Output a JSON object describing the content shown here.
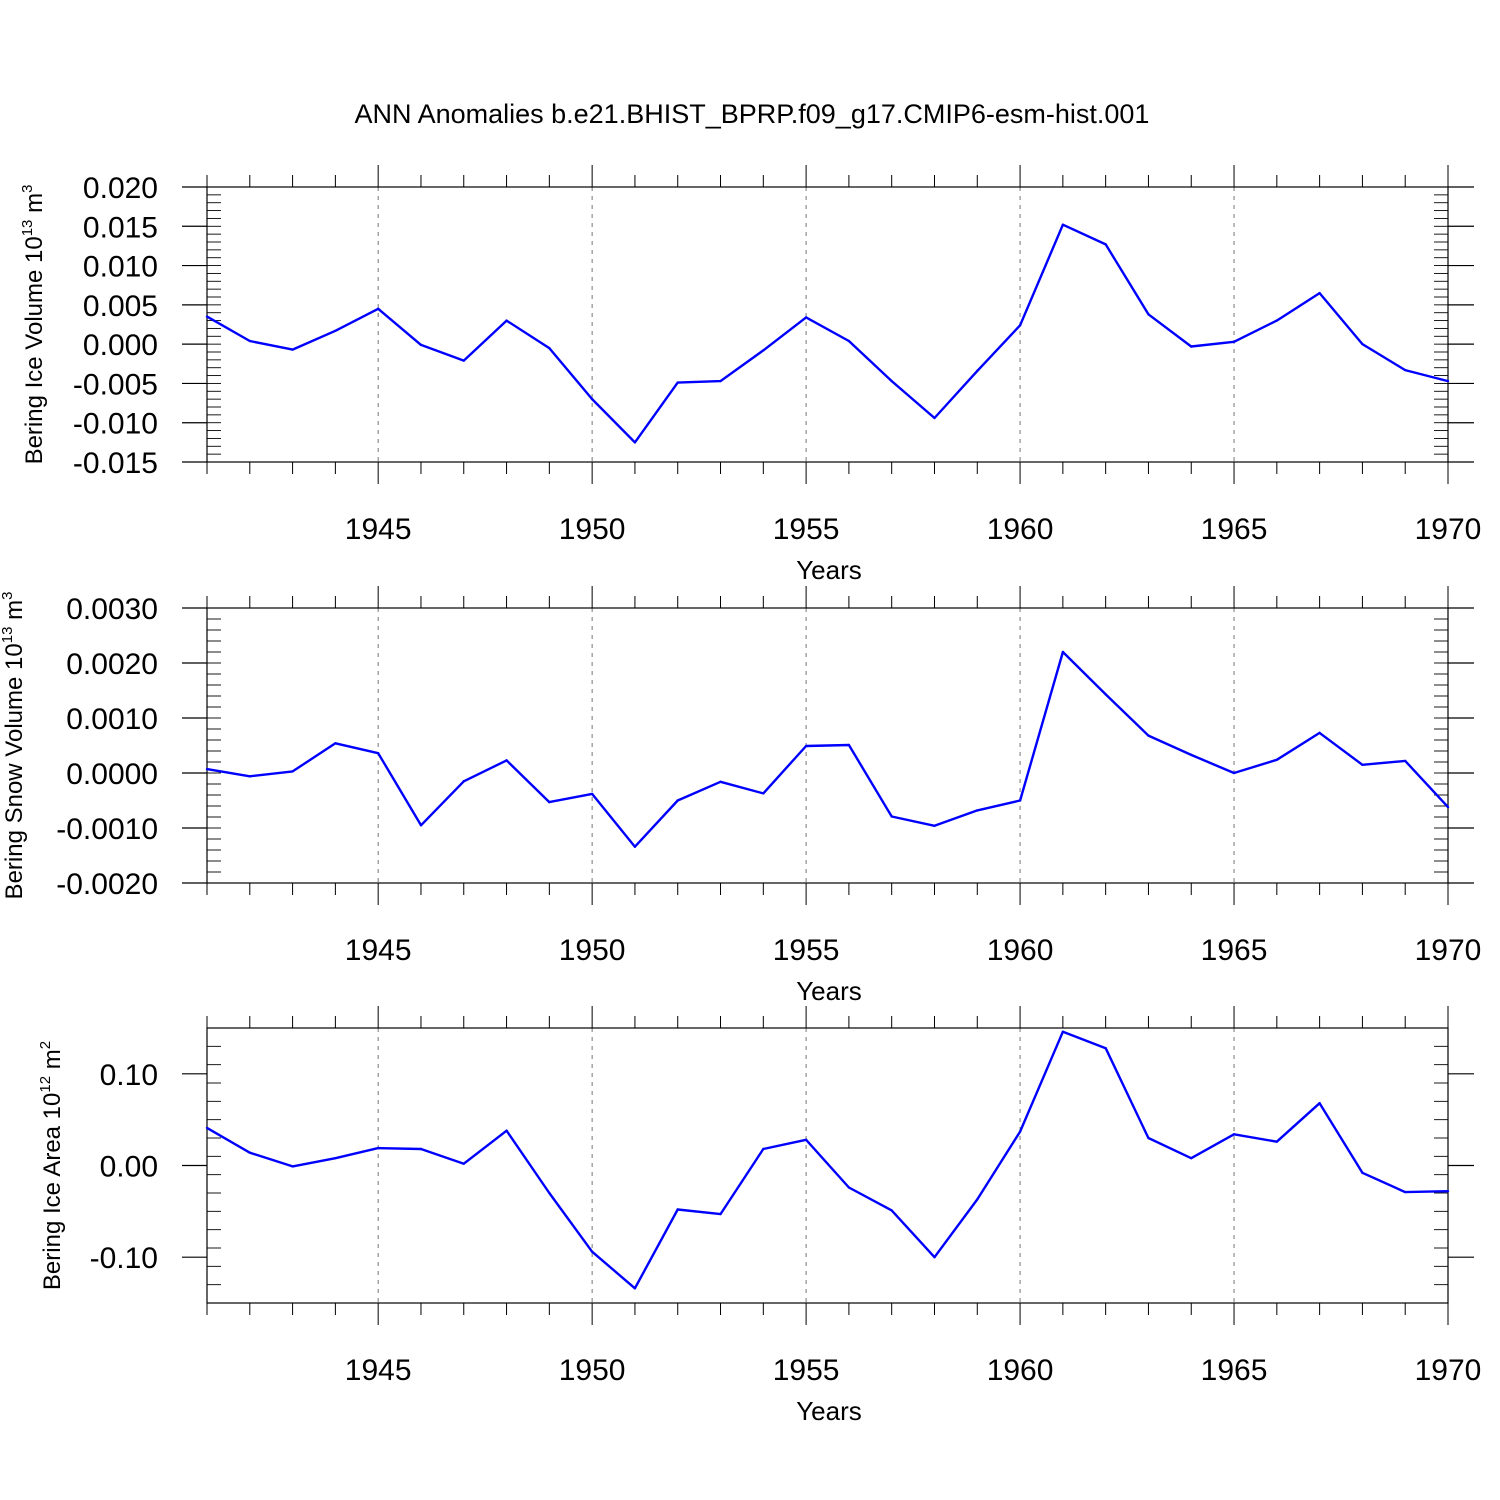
{
  "title": "ANN Anomalies b.e21.BHIST_BPRP.f09_g17.CMIP6-esm-hist.001",
  "chart_data": [
    {
      "type": "line",
      "ylabel_text": "Bering Ice Volume 10",
      "ylabel_exp": "13",
      "ylabel_unit": " m",
      "ylabel_unit_exp": "3",
      "xlabel": "Years",
      "xlim": [
        1941,
        1970
      ],
      "ylim": [
        -0.015,
        0.02
      ],
      "yticks": [
        -0.015,
        -0.01,
        -0.005,
        0.0,
        0.005,
        0.01,
        0.015,
        0.02
      ],
      "ytick_labels": [
        "-0.015",
        "-0.010",
        "-0.005",
        "0.000",
        "0.005",
        "0.010",
        "0.015",
        "0.020"
      ],
      "yminor_step": 0.001,
      "xticks": [
        1945,
        1950,
        1955,
        1960,
        1965,
        1970
      ],
      "xtick_labels": [
        "1945",
        "1950",
        "1955",
        "1960",
        "1965",
        "1970"
      ],
      "grid": "dashed vertical at labelled years",
      "color": "#0000ff",
      "x": [
        1941,
        1942,
        1943,
        1944,
        1945,
        1946,
        1947,
        1948,
        1949,
        1950,
        1951,
        1952,
        1953,
        1954,
        1955,
        1956,
        1957,
        1958,
        1959,
        1960,
        1961,
        1962,
        1963,
        1964,
        1965,
        1966,
        1967,
        1968,
        1969,
        1970
      ],
      "values": [
        0.0035,
        0.0004,
        -0.0007,
        0.0017,
        0.0045,
        -0.0001,
        -0.0021,
        0.003,
        -0.0005,
        -0.007,
        -0.0125,
        -0.0049,
        -0.0047,
        -0.0008,
        0.0034,
        0.0004,
        -0.0047,
        -0.0094,
        -0.0034,
        0.0024,
        0.0152,
        0.0127,
        0.0038,
        -0.0003,
        0.0003,
        0.003,
        0.0065,
        0.0,
        -0.0033,
        -0.0047
      ]
    },
    {
      "type": "line",
      "ylabel_text": "Bering Snow Volume 10",
      "ylabel_exp": "13",
      "ylabel_unit": " m",
      "ylabel_unit_exp": "3",
      "xlabel": "Years",
      "xlim": [
        1941,
        1970
      ],
      "ylim": [
        -0.002,
        0.003
      ],
      "yticks": [
        -0.002,
        -0.001,
        0.0,
        0.001,
        0.002,
        0.003
      ],
      "ytick_labels": [
        "-0.0020",
        "-0.0010",
        "0.0000",
        "0.0010",
        "0.0020",
        "0.0030"
      ],
      "yminor_step": 0.0002,
      "xticks": [
        1945,
        1950,
        1955,
        1960,
        1965,
        1970
      ],
      "xtick_labels": [
        "1945",
        "1950",
        "1955",
        "1960",
        "1965",
        "1970"
      ],
      "grid": "dashed vertical at labelled years",
      "color": "#0000ff",
      "x": [
        1941,
        1942,
        1943,
        1944,
        1945,
        1946,
        1947,
        1948,
        1949,
        1950,
        1951,
        1952,
        1953,
        1954,
        1955,
        1956,
        1957,
        1958,
        1959,
        1960,
        1961,
        1962,
        1963,
        1964,
        1965,
        1966,
        1967,
        1968,
        1969,
        1970
      ],
      "values": [
        7e-05,
        -6e-05,
        3e-05,
        0.00054,
        0.00036,
        -0.00095,
        -0.00015,
        0.00023,
        -0.00053,
        -0.00038,
        -0.00134,
        -0.0005,
        -0.00016,
        -0.00037,
        0.00049,
        0.00051,
        -0.00079,
        -0.00096,
        -0.00068,
        -0.0005,
        0.0022,
        0.00143,
        0.00068,
        0.00033,
        0.0,
        0.00024,
        0.00073,
        0.00015,
        0.00022,
        -0.00062
      ]
    },
    {
      "type": "line",
      "ylabel_text": "Bering Ice Area 10",
      "ylabel_exp": "12",
      "ylabel_unit": " m",
      "ylabel_unit_exp": "2",
      "xlabel": "Years",
      "xlim": [
        1941,
        1970
      ],
      "ylim": [
        -0.15,
        0.15
      ],
      "yticks": [
        -0.1,
        0.0,
        0.1
      ],
      "ytick_labels": [
        "-0.10",
        "0.00",
        "0.10"
      ],
      "yminor_step": 0.02,
      "xticks": [
        1945,
        1950,
        1955,
        1960,
        1965,
        1970
      ],
      "xtick_labels": [
        "1945",
        "1950",
        "1955",
        "1960",
        "1965",
        "1970"
      ],
      "grid": "dashed vertical at labelled years",
      "color": "#0000ff",
      "x": [
        1941,
        1942,
        1943,
        1944,
        1945,
        1946,
        1947,
        1948,
        1949,
        1950,
        1951,
        1952,
        1953,
        1954,
        1955,
        1956,
        1957,
        1958,
        1959,
        1960,
        1961,
        1962,
        1963,
        1964,
        1965,
        1966,
        1967,
        1968,
        1969,
        1970
      ],
      "values": [
        0.041,
        0.014,
        -0.001,
        0.008,
        0.019,
        0.018,
        0.002,
        0.038,
        -0.03,
        -0.094,
        -0.134,
        -0.048,
        -0.053,
        0.018,
        0.028,
        -0.024,
        -0.049,
        -0.1,
        -0.037,
        0.037,
        0.146,
        0.128,
        0.03,
        0.008,
        0.034,
        0.026,
        0.068,
        -0.008,
        -0.029,
        -0.028
      ]
    }
  ]
}
